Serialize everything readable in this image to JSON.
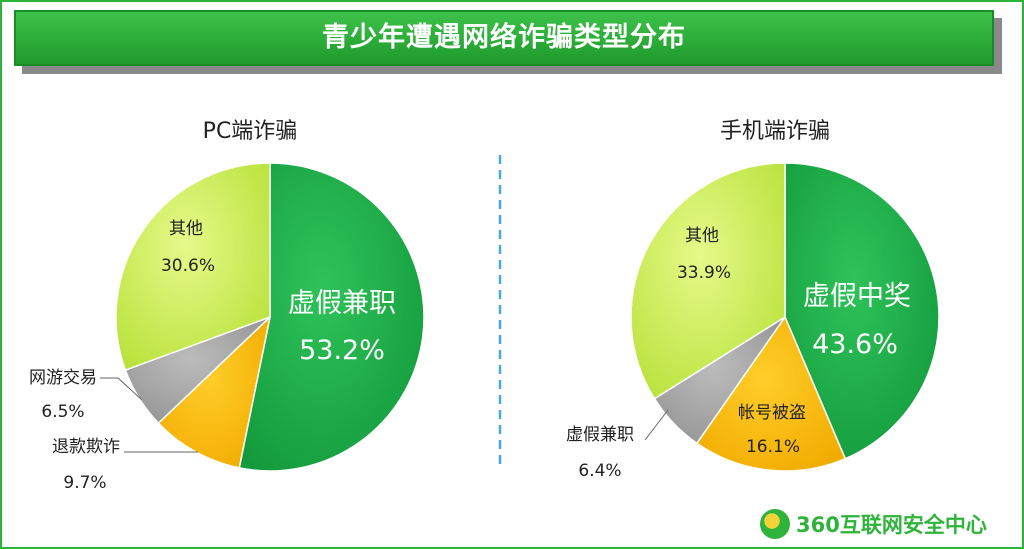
{
  "banner": {
    "title": "青少年遭遇网络诈骗类型分布"
  },
  "footer": {
    "logo_text": "360互联网安全中心"
  },
  "colors": {
    "green": "#1fa84a",
    "yellow_green": "#cfef5a",
    "gray": "#a6a6a6",
    "orange": "#ffbf00",
    "divider": "#4aa8e0"
  },
  "chart_data": [
    {
      "type": "pie",
      "title": "PC端诈骗",
      "slices": [
        {
          "label": "虚假兼职",
          "value": 53.2,
          "display": "53.2%",
          "color": "#1fa84a"
        },
        {
          "label": "退款欺诈",
          "value": 9.7,
          "display": "9.7%",
          "color": "#ffbf00"
        },
        {
          "label": "网游交易",
          "value": 6.5,
          "display": "6.5%",
          "color": "#a6a6a6"
        },
        {
          "label": "其他",
          "value": 30.6,
          "display": "30.6%",
          "color": "#cfef5a"
        }
      ]
    },
    {
      "type": "pie",
      "title": "手机端诈骗",
      "slices": [
        {
          "label": "虚假中奖",
          "value": 43.6,
          "display": "43.6%",
          "color": "#1fa84a"
        },
        {
          "label": "帐号被盗",
          "value": 16.1,
          "display": "16.1%",
          "color": "#ffbf00"
        },
        {
          "label": "虚假兼职",
          "value": 6.4,
          "display": "6.4%",
          "color": "#a6a6a6"
        },
        {
          "label": "其他",
          "value": 33.9,
          "display": "33.9%",
          "color": "#cfef5a"
        }
      ]
    }
  ]
}
